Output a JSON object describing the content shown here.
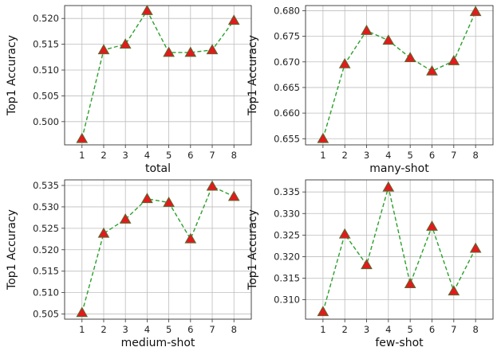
{
  "colors": {
    "line": "#2ca02c",
    "marker_fill": "#e31a1c",
    "marker_edge": "#556b2f",
    "grid": "#bdbdbd",
    "frame": "#333333"
  },
  "chart_data": [
    {
      "type": "line",
      "xlabel": "total",
      "ylabel": "Top1 Accuracy",
      "x": [
        1,
        2,
        3,
        4,
        5,
        6,
        7,
        8
      ],
      "values": [
        0.4967,
        0.5139,
        0.515,
        0.5215,
        0.5134,
        0.5134,
        0.5139,
        0.5196
      ],
      "ylim": [
        0.4955,
        0.5225
      ],
      "yticks": [
        "0.500",
        "0.505",
        "0.510",
        "0.515",
        "0.520"
      ],
      "xticks": [
        "1",
        "2",
        "3",
        "4",
        "5",
        "6",
        "7",
        "8"
      ],
      "grid": true,
      "marker": "triangle"
    },
    {
      "type": "line",
      "xlabel": "many-shot",
      "ylabel": "Top1 Accuracy",
      "x": [
        1,
        2,
        3,
        4,
        5,
        6,
        7,
        8
      ],
      "values": [
        0.655,
        0.6696,
        0.6761,
        0.6742,
        0.6708,
        0.6682,
        0.6702,
        0.6798
      ],
      "ylim": [
        0.6538,
        0.681
      ],
      "yticks": [
        "0.655",
        "0.660",
        "0.665",
        "0.670",
        "0.675",
        "0.680"
      ],
      "xticks": [
        "1",
        "2",
        "3",
        "4",
        "5",
        "6",
        "7",
        "8"
      ],
      "grid": true,
      "marker": "triangle"
    },
    {
      "type": "line",
      "xlabel": "medium-shot",
      "ylabel": "Top1 Accuracy",
      "x": [
        1,
        2,
        3,
        4,
        5,
        6,
        7,
        8
      ],
      "values": [
        0.5053,
        0.5238,
        0.5271,
        0.5319,
        0.531,
        0.5225,
        0.5348,
        0.5324
      ],
      "ylim": [
        0.5038,
        0.5363
      ],
      "yticks": [
        "0.505",
        "0.510",
        "0.515",
        "0.520",
        "0.525",
        "0.530",
        "0.535"
      ],
      "xticks": [
        "1",
        "2",
        "3",
        "4",
        "5",
        "6",
        "7",
        "8"
      ],
      "grid": true,
      "marker": "triangle"
    },
    {
      "type": "line",
      "xlabel": "few-shot",
      "ylabel": "Top1 Accuracy",
      "x": [
        1,
        2,
        3,
        4,
        5,
        6,
        7,
        8
      ],
      "values": [
        0.3072,
        0.3252,
        0.3181,
        0.3361,
        0.3137,
        0.327,
        0.312,
        0.3219
      ],
      "ylim": [
        0.3055,
        0.3378
      ],
      "yticks": [
        "0.310",
        "0.315",
        "0.320",
        "0.325",
        "0.330",
        "0.335"
      ],
      "xticks": [
        "1",
        "2",
        "3",
        "4",
        "5",
        "6",
        "7",
        "8"
      ],
      "grid": true,
      "marker": "triangle"
    }
  ]
}
